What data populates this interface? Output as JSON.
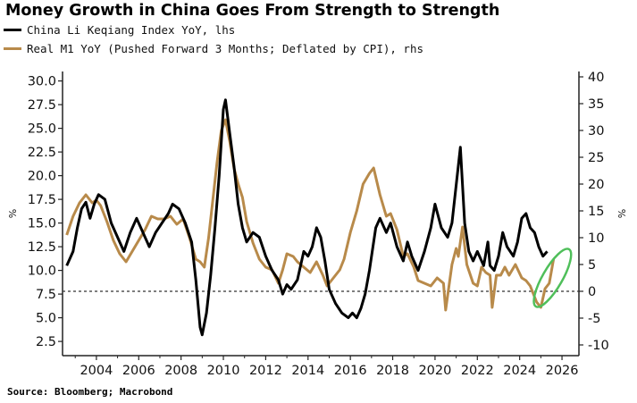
{
  "title": "Money Growth in China Goes From Strength to Strength",
  "source": "Source: Bloomberg; Macrobond",
  "colors": {
    "li": "#000000",
    "m1": "#b88a4a",
    "highlight": "#4fbf5a",
    "zero": "#333333",
    "axis": "#222222"
  },
  "legend": [
    {
      "label": "China Li Keqiang Index YoY, lhs",
      "color": "#000000"
    },
    {
      "label": "Real M1 YoY (Pushed Forward 3 Months; Deflated by CPI), rhs",
      "color": "#b88a4a"
    }
  ],
  "chart_data": {
    "type": "line",
    "title": "Money Growth in China Goes From Strength to Strength",
    "xlim": [
      2002.4,
      2026.8
    ],
    "x_ticks": [
      2004,
      2006,
      2008,
      2010,
      2012,
      2014,
      2016,
      2018,
      2020,
      2022,
      2024,
      2026
    ],
    "left_axis": {
      "label": "%",
      "ylim": [
        1.0,
        31.0
      ],
      "ticks": [
        "2.5",
        "5.0",
        "7.5",
        "10.0",
        "12.5",
        "15.0",
        "17.5",
        "20.0",
        "22.5",
        "25.0",
        "27.5",
        "30.0"
      ]
    },
    "right_axis": {
      "label": "%",
      "ylim": [
        -12,
        41
      ],
      "ticks": [
        "-10",
        "-5",
        "0",
        "5",
        "10",
        "15",
        "20",
        "25",
        "30",
        "35",
        "40"
      ]
    },
    "reference_line": {
      "axis": "right",
      "y": 0,
      "style": "dashed"
    },
    "grid": false,
    "legend_position": "top-left",
    "series": [
      {
        "name": "China Li Keqiang Index YoY, lhs",
        "axis": "left",
        "points": [
          [
            2002.6,
            10.5
          ],
          [
            2002.9,
            12.0
          ],
          [
            2003.1,
            14.5
          ],
          [
            2003.3,
            16.5
          ],
          [
            2003.5,
            17.2
          ],
          [
            2003.7,
            15.5
          ],
          [
            2003.9,
            17.0
          ],
          [
            2004.1,
            18.0
          ],
          [
            2004.4,
            17.5
          ],
          [
            2004.7,
            15.0
          ],
          [
            2005.0,
            13.5
          ],
          [
            2005.3,
            12.0
          ],
          [
            2005.6,
            14.0
          ],
          [
            2005.9,
            15.5
          ],
          [
            2006.2,
            14.0
          ],
          [
            2006.5,
            12.5
          ],
          [
            2006.8,
            14.0
          ],
          [
            2007.1,
            15.0
          ],
          [
            2007.4,
            16.0
          ],
          [
            2007.6,
            17.0
          ],
          [
            2007.9,
            16.5
          ],
          [
            2008.2,
            15.0
          ],
          [
            2008.5,
            13.0
          ],
          [
            2008.7,
            9.0
          ],
          [
            2008.9,
            4.0
          ],
          [
            2009.0,
            3.2
          ],
          [
            2009.2,
            5.5
          ],
          [
            2009.4,
            9.5
          ],
          [
            2009.6,
            14.5
          ],
          [
            2009.8,
            20.0
          ],
          [
            2010.0,
            27.0
          ],
          [
            2010.1,
            28.0
          ],
          [
            2010.3,
            24.5
          ],
          [
            2010.5,
            21.0
          ],
          [
            2010.7,
            17.0
          ],
          [
            2010.9,
            14.5
          ],
          [
            2011.1,
            13.0
          ],
          [
            2011.4,
            14.0
          ],
          [
            2011.7,
            13.5
          ],
          [
            2012.0,
            11.5
          ],
          [
            2012.3,
            10.0
          ],
          [
            2012.6,
            9.0
          ],
          [
            2012.8,
            7.5
          ],
          [
            2013.0,
            8.5
          ],
          [
            2013.2,
            8.0
          ],
          [
            2013.5,
            9.0
          ],
          [
            2013.8,
            12.0
          ],
          [
            2014.0,
            11.5
          ],
          [
            2014.2,
            12.5
          ],
          [
            2014.4,
            14.5
          ],
          [
            2014.6,
            13.5
          ],
          [
            2014.8,
            11.0
          ],
          [
            2015.0,
            8.0
          ],
          [
            2015.3,
            6.5
          ],
          [
            2015.6,
            5.5
          ],
          [
            2015.9,
            5.0
          ],
          [
            2016.1,
            5.5
          ],
          [
            2016.3,
            5.0
          ],
          [
            2016.5,
            6.0
          ],
          [
            2016.7,
            7.5
          ],
          [
            2016.9,
            10.0
          ],
          [
            2017.2,
            14.5
          ],
          [
            2017.4,
            15.5
          ],
          [
            2017.7,
            14.0
          ],
          [
            2017.9,
            15.0
          ],
          [
            2018.2,
            12.5
          ],
          [
            2018.5,
            11.0
          ],
          [
            2018.7,
            13.0
          ],
          [
            2018.9,
            11.5
          ],
          [
            2019.2,
            10.0
          ],
          [
            2019.5,
            12.0
          ],
          [
            2019.8,
            14.5
          ],
          [
            2020.0,
            17.0
          ],
          [
            2020.3,
            14.5
          ],
          [
            2020.6,
            13.5
          ],
          [
            2020.8,
            15.0
          ],
          [
            2021.0,
            19.0
          ],
          [
            2021.2,
            23.0
          ],
          [
            2021.4,
            15.0
          ],
          [
            2021.6,
            12.0
          ],
          [
            2021.8,
            11.0
          ],
          [
            2022.0,
            12.0
          ],
          [
            2022.3,
            10.5
          ],
          [
            2022.5,
            13.0
          ],
          [
            2022.6,
            10.5
          ],
          [
            2022.8,
            10.0
          ],
          [
            2023.0,
            11.5
          ],
          [
            2023.2,
            14.0
          ],
          [
            2023.4,
            12.5
          ],
          [
            2023.7,
            11.5
          ],
          [
            2023.9,
            13.0
          ],
          [
            2024.1,
            15.5
          ],
          [
            2024.3,
            16.0
          ],
          [
            2024.5,
            14.5
          ],
          [
            2024.7,
            14.0
          ],
          [
            2024.9,
            12.5
          ],
          [
            2025.1,
            11.5
          ],
          [
            2025.3,
            12.0
          ]
        ]
      },
      {
        "name": "Real M1 YoY (Pushed Forward 3 Months; Deflated by CPI), rhs",
        "axis": "right",
        "points": [
          [
            2002.6,
            10.5
          ],
          [
            2002.9,
            14.0
          ],
          [
            2003.2,
            16.5
          ],
          [
            2003.5,
            18.0
          ],
          [
            2003.8,
            16.5
          ],
          [
            2004.0,
            17.0
          ],
          [
            2004.2,
            16.0
          ],
          [
            2004.5,
            13.0
          ],
          [
            2004.8,
            9.5
          ],
          [
            2005.1,
            7.0
          ],
          [
            2005.4,
            5.5
          ],
          [
            2005.7,
            7.5
          ],
          [
            2006.0,
            9.5
          ],
          [
            2006.3,
            11.5
          ],
          [
            2006.6,
            14.0
          ],
          [
            2006.9,
            13.5
          ],
          [
            2007.2,
            13.5
          ],
          [
            2007.5,
            14.0
          ],
          [
            2007.8,
            12.5
          ],
          [
            2008.1,
            13.5
          ],
          [
            2008.4,
            10.0
          ],
          [
            2008.7,
            6.0
          ],
          [
            2008.9,
            5.5
          ],
          [
            2009.1,
            4.5
          ],
          [
            2009.3,
            10.0
          ],
          [
            2009.5,
            17.0
          ],
          [
            2009.7,
            24.0
          ],
          [
            2009.9,
            30.0
          ],
          [
            2010.1,
            32.0
          ],
          [
            2010.3,
            28.0
          ],
          [
            2010.5,
            23.0
          ],
          [
            2010.7,
            20.0
          ],
          [
            2010.9,
            17.5
          ],
          [
            2011.1,
            13.0
          ],
          [
            2011.4,
            9.0
          ],
          [
            2011.7,
            6.0
          ],
          [
            2012.0,
            4.5
          ],
          [
            2012.3,
            4.0
          ],
          [
            2012.6,
            1.5
          ],
          [
            2012.8,
            4.0
          ],
          [
            2013.0,
            7.0
          ],
          [
            2013.3,
            6.5
          ],
          [
            2013.5,
            5.5
          ],
          [
            2013.8,
            4.5
          ],
          [
            2014.1,
            3.5
          ],
          [
            2014.4,
            5.5
          ],
          [
            2014.7,
            3.0
          ],
          [
            2014.9,
            1.0
          ],
          [
            2015.2,
            2.5
          ],
          [
            2015.5,
            4.0
          ],
          [
            2015.7,
            6.0
          ],
          [
            2016.0,
            11.0
          ],
          [
            2016.3,
            15.0
          ],
          [
            2016.6,
            20.0
          ],
          [
            2016.9,
            22.0
          ],
          [
            2017.1,
            23.0
          ],
          [
            2017.4,
            18.0
          ],
          [
            2017.7,
            14.0
          ],
          [
            2017.9,
            14.5
          ],
          [
            2018.2,
            11.5
          ],
          [
            2018.5,
            6.5
          ],
          [
            2018.7,
            7.0
          ],
          [
            2019.0,
            4.5
          ],
          [
            2019.2,
            2.0
          ],
          [
            2019.5,
            1.5
          ],
          [
            2019.8,
            1.0
          ],
          [
            2020.1,
            2.5
          ],
          [
            2020.4,
            1.5
          ],
          [
            2020.5,
            -3.5
          ],
          [
            2020.8,
            5.0
          ],
          [
            2021.0,
            8.0
          ],
          [
            2021.1,
            6.5
          ],
          [
            2021.3,
            12.0
          ],
          [
            2021.5,
            5.0
          ],
          [
            2021.8,
            1.5
          ],
          [
            2022.0,
            1.0
          ],
          [
            2022.2,
            4.5
          ],
          [
            2022.4,
            3.5
          ],
          [
            2022.6,
            3.0
          ],
          [
            2022.7,
            -3.0
          ],
          [
            2022.9,
            3.0
          ],
          [
            2023.1,
            3.0
          ],
          [
            2023.3,
            4.5
          ],
          [
            2023.5,
            3.0
          ],
          [
            2023.8,
            5.0
          ],
          [
            2024.1,
            2.5
          ],
          [
            2024.3,
            2.0
          ],
          [
            2024.5,
            1.0
          ],
          [
            2024.8,
            -2.0
          ],
          [
            2025.0,
            -3.0
          ],
          [
            2025.2,
            0.5
          ],
          [
            2025.4,
            1.5
          ],
          [
            2025.6,
            6.0
          ]
        ]
      }
    ]
  }
}
